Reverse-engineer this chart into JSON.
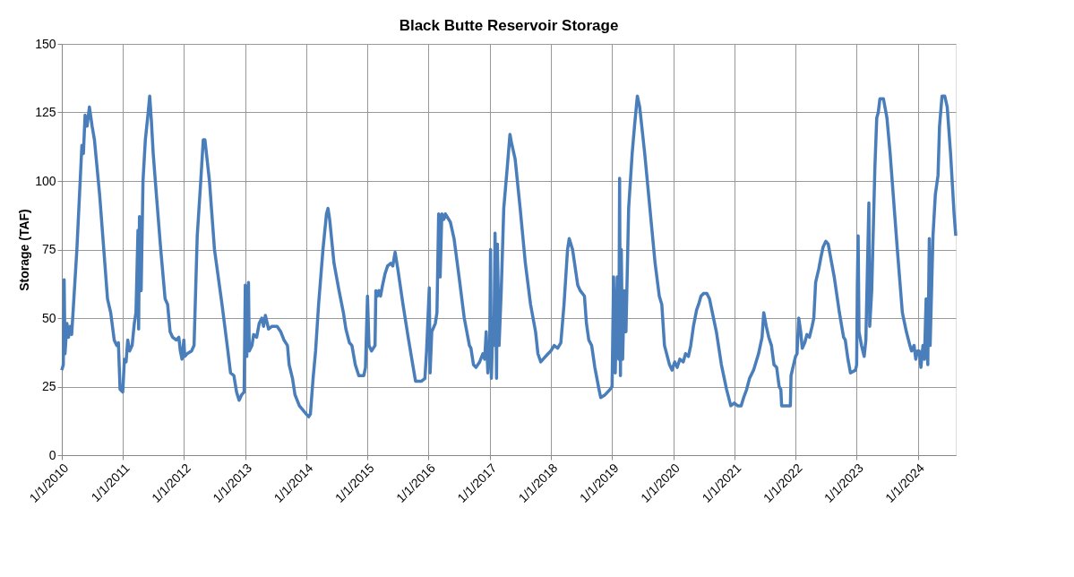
{
  "chart_data": {
    "type": "line",
    "title": "Black Butte Reservoir Storage",
    "ylabel": "Storage (TAF)",
    "xlim": [
      "2010-01-01",
      "2024-08-15"
    ],
    "xticks": [
      {
        "value": "2010-01-01",
        "label": "1/1/2010"
      },
      {
        "value": "2011-01-01",
        "label": "1/1/2011"
      },
      {
        "value": "2012-01-01",
        "label": "1/1/2012"
      },
      {
        "value": "2013-01-01",
        "label": "1/1/2013"
      },
      {
        "value": "2014-01-01",
        "label": "1/1/2014"
      },
      {
        "value": "2015-01-01",
        "label": "1/1/2015"
      },
      {
        "value": "2016-01-01",
        "label": "1/1/2016"
      },
      {
        "value": "2017-01-01",
        "label": "1/1/2017"
      },
      {
        "value": "2018-01-01",
        "label": "1/1/2018"
      },
      {
        "value": "2019-01-01",
        "label": "1/1/2019"
      },
      {
        "value": "2020-01-01",
        "label": "1/1/2020"
      },
      {
        "value": "2021-01-01",
        "label": "1/1/2021"
      },
      {
        "value": "2022-01-01",
        "label": "1/1/2022"
      },
      {
        "value": "2023-01-01",
        "label": "1/1/2023"
      },
      {
        "value": "2024-01-01",
        "label": "1/1/2024"
      }
    ],
    "ylim": [
      0,
      150
    ],
    "yticks": [
      0,
      25,
      50,
      75,
      100,
      125,
      150
    ],
    "grid": true,
    "legend": false,
    "marker": "none",
    "line_style": "solid",
    "series": [
      {
        "color": "#4a7ebb",
        "x": [
          "2010-01-01",
          "2010-01-10",
          "2010-01-15",
          "2010-01-20",
          "2010-02-01",
          "2010-02-10",
          "2010-02-20",
          "2010-03-01",
          "2010-03-15",
          "2010-04-01",
          "2010-05-01",
          "2010-05-10",
          "2010-05-20",
          "2010-06-01",
          "2010-06-15",
          "2010-07-01",
          "2010-07-15",
          "2010-08-15",
          "2010-09-15",
          "2010-10-01",
          "2010-10-20",
          "2010-11-10",
          "2010-11-25",
          "2010-12-05",
          "2010-12-15",
          "2010-12-31",
          "2011-01-10",
          "2011-01-20",
          "2011-01-30",
          "2011-02-10",
          "2011-02-25",
          "2011-03-10",
          "2011-03-20",
          "2011-04-01",
          "2011-04-05",
          "2011-04-10",
          "2011-04-20",
          "2011-05-01",
          "2011-05-15",
          "2011-06-01",
          "2011-06-10",
          "2011-06-20",
          "2011-07-01",
          "2011-07-20",
          "2011-08-15",
          "2011-09-10",
          "2011-09-25",
          "2011-10-10",
          "2011-10-25",
          "2011-11-15",
          "2011-12-01",
          "2011-12-10",
          "2011-12-20",
          "2011-12-31",
          "2012-01-05",
          "2012-01-20",
          "2012-02-15",
          "2012-03-01",
          "2012-03-20",
          "2012-04-10",
          "2012-04-25",
          "2012-05-05",
          "2012-06-01",
          "2012-07-01",
          "2012-08-15",
          "2012-09-15",
          "2012-10-05",
          "2012-10-25",
          "2012-11-10",
          "2012-11-25",
          "2012-12-10",
          "2012-12-25",
          "2013-01-01",
          "2013-01-10",
          "2013-01-20",
          "2013-01-25",
          "2013-02-10",
          "2013-02-20",
          "2013-03-10",
          "2013-03-25",
          "2013-04-10",
          "2013-04-20",
          "2013-05-01",
          "2013-05-20",
          "2013-06-10",
          "2013-07-10",
          "2013-08-01",
          "2013-08-20",
          "2013-09-10",
          "2013-09-20",
          "2013-10-10",
          "2013-10-25",
          "2013-11-20",
          "2013-12-31",
          "2014-01-15",
          "2014-01-25",
          "2014-02-10",
          "2014-02-25",
          "2014-03-15",
          "2014-04-10",
          "2014-05-01",
          "2014-05-10",
          "2014-05-20",
          "2014-06-15",
          "2014-07-15",
          "2014-08-10",
          "2014-08-25",
          "2014-09-15",
          "2014-09-30",
          "2014-10-20",
          "2014-11-10",
          "2014-12-10",
          "2014-12-20",
          "2015-01-01",
          "2015-01-10",
          "2015-01-25",
          "2015-02-15",
          "2015-02-20",
          "2015-03-01",
          "2015-03-10",
          "2015-03-20",
          "2015-04-01",
          "2015-04-15",
          "2015-05-01",
          "2015-05-20",
          "2015-06-01",
          "2015-06-15",
          "2015-07-01",
          "2015-08-01",
          "2015-09-01",
          "2015-10-01",
          "2015-10-15",
          "2015-11-20",
          "2015-12-10",
          "2015-12-20",
          "2016-01-05",
          "2016-01-10",
          "2016-01-20",
          "2016-02-10",
          "2016-02-20",
          "2016-03-01",
          "2016-03-10",
          "2016-03-20",
          "2016-04-01",
          "2016-04-10",
          "2016-04-20",
          "2016-05-10",
          "2016-06-01",
          "2016-07-01",
          "2016-08-01",
          "2016-09-01",
          "2016-09-10",
          "2016-09-25",
          "2016-10-10",
          "2016-11-01",
          "2016-11-20",
          "2016-12-01",
          "2016-12-10",
          "2016-12-20",
          "2016-12-31",
          "2017-01-05",
          "2017-01-10",
          "2017-01-20",
          "2017-01-25",
          "2017-02-01",
          "2017-02-10",
          "2017-02-15",
          "2017-02-25",
          "2017-03-10",
          "2017-03-25",
          "2017-04-15",
          "2017-05-01",
          "2017-05-10",
          "2017-06-01",
          "2017-07-01",
          "2017-08-01",
          "2017-09-01",
          "2017-10-01",
          "2017-10-15",
          "2017-11-01",
          "2017-11-15",
          "2017-12-15",
          "2017-12-31",
          "2018-01-20",
          "2018-02-10",
          "2018-03-01",
          "2018-03-20",
          "2018-04-10",
          "2018-04-20",
          "2018-05-10",
          "2018-06-10",
          "2018-06-25",
          "2018-07-20",
          "2018-08-01",
          "2018-08-15",
          "2018-09-01",
          "2018-09-20",
          "2018-10-15",
          "2018-10-25",
          "2018-11-20",
          "2018-12-20",
          "2019-01-01",
          "2019-01-10",
          "2019-01-20",
          "2019-02-01",
          "2019-02-10",
          "2019-02-15",
          "2019-02-20",
          "2019-02-25",
          "2019-03-05",
          "2019-03-15",
          "2019-03-25",
          "2019-04-10",
          "2019-05-01",
          "2019-05-15",
          "2019-06-01",
          "2019-06-15",
          "2019-07-15",
          "2019-08-15",
          "2019-09-15",
          "2019-10-10",
          "2019-10-25",
          "2019-11-10",
          "2019-12-10",
          "2019-12-25",
          "2020-01-10",
          "2020-01-25",
          "2020-02-10",
          "2020-03-01",
          "2020-03-15",
          "2020-04-01",
          "2020-04-15",
          "2020-05-01",
          "2020-05-20",
          "2020-06-01",
          "2020-06-15",
          "2020-07-01",
          "2020-07-20",
          "2020-08-05",
          "2020-09-15",
          "2020-10-15",
          "2020-11-15",
          "2020-12-10",
          "2020-12-31",
          "2021-01-20",
          "2021-02-10",
          "2021-02-25",
          "2021-03-15",
          "2021-04-01",
          "2021-04-25",
          "2021-05-10",
          "2021-05-25",
          "2021-06-15",
          "2021-06-25",
          "2021-07-10",
          "2021-07-25",
          "2021-08-10",
          "2021-08-25",
          "2021-09-10",
          "2021-09-25",
          "2021-10-05",
          "2021-10-10",
          "2021-11-10",
          "2021-12-01",
          "2021-12-05",
          "2021-12-20",
          "2022-01-01",
          "2022-01-10",
          "2022-01-20",
          "2022-02-01",
          "2022-02-10",
          "2022-02-25",
          "2022-03-10",
          "2022-03-25",
          "2022-04-10",
          "2022-04-20",
          "2022-05-01",
          "2022-05-20",
          "2022-06-01",
          "2022-06-15",
          "2022-07-01",
          "2022-07-15",
          "2022-08-20",
          "2022-09-20",
          "2022-10-15",
          "2022-10-25",
          "2022-11-10",
          "2022-11-25",
          "2022-12-25",
          "2023-01-01",
          "2023-01-05",
          "2023-01-10",
          "2023-01-15",
          "2023-01-30",
          "2023-02-15",
          "2023-02-25",
          "2023-03-15",
          "2023-03-20",
          "2023-04-01",
          "2023-04-20",
          "2023-05-01",
          "2023-05-10",
          "2023-05-20",
          "2023-06-10",
          "2023-07-01",
          "2023-07-20",
          "2023-09-01",
          "2023-10-01",
          "2023-10-25",
          "2023-11-15",
          "2023-11-25",
          "2023-12-10",
          "2023-12-20",
          "2023-12-31",
          "2024-01-10",
          "2024-01-20",
          "2024-02-01",
          "2024-02-10",
          "2024-02-20",
          "2024-03-01",
          "2024-03-10",
          "2024-03-15",
          "2024-04-01",
          "2024-04-15",
          "2024-05-01",
          "2024-05-10",
          "2024-05-25",
          "2024-06-10",
          "2024-06-25",
          "2024-07-15",
          "2024-08-05",
          "2024-08-15"
        ],
        "values": [
          31,
          33,
          64,
          37,
          48,
          43,
          47,
          44,
          58,
          75,
          113,
          110,
          124,
          120,
          127,
          120,
          115,
          95,
          70,
          57,
          52,
          42,
          40,
          41,
          24,
          23,
          35,
          34,
          42,
          38,
          40,
          48,
          52,
          82,
          46,
          87,
          60,
          100,
          115,
          125,
          131,
          122,
          110,
          95,
          75,
          57,
          55,
          45,
          43,
          42,
          43,
          38,
          35,
          42,
          36,
          37,
          38,
          40,
          80,
          100,
          115,
          115,
          100,
          75,
          55,
          40,
          30,
          29,
          23,
          20,
          22,
          23,
          62,
          36,
          63,
          38,
          40,
          44,
          43,
          48,
          50,
          47,
          51,
          46,
          47,
          47,
          45,
          42,
          40,
          33,
          28,
          22,
          18,
          15,
          14,
          15,
          28,
          38,
          55,
          75,
          88,
          90,
          86,
          70,
          60,
          52,
          46,
          41,
          40,
          33,
          29,
          29,
          32,
          58,
          40,
          38,
          40,
          60,
          58,
          60,
          58,
          62,
          66,
          69,
          70,
          69,
          74,
          68,
          55,
          43,
          32,
          27,
          27,
          28,
          38,
          61,
          30,
          45,
          48,
          52,
          88,
          65,
          88,
          86,
          88,
          87,
          85,
          79,
          65,
          50,
          40,
          39,
          33,
          32,
          34,
          37,
          35,
          45,
          30,
          40,
          75,
          28,
          50,
          40,
          81,
          28,
          77,
          40,
          60,
          90,
          105,
          117,
          114,
          108,
          90,
          70,
          55,
          45,
          37,
          34,
          35,
          37,
          38,
          40,
          39,
          41,
          55,
          75,
          79,
          75,
          62,
          60,
          58,
          48,
          42,
          40,
          32,
          24,
          21,
          22,
          24,
          25,
          65,
          30,
          65,
          35,
          101,
          29,
          75,
          35,
          60,
          45,
          90,
          110,
          120,
          131,
          127,
          110,
          90,
          70,
          58,
          55,
          40,
          33,
          31,
          34,
          32,
          35,
          34,
          37,
          36,
          40,
          47,
          53,
          55,
          58,
          59,
          59,
          57,
          45,
          33,
          24,
          18,
          19,
          18,
          18,
          21,
          24,
          28,
          31,
          34,
          37,
          43,
          52,
          47,
          43,
          40,
          33,
          32,
          25,
          24,
          18,
          18,
          18,
          29,
          33,
          36,
          37,
          50,
          45,
          39,
          41,
          44,
          43,
          47,
          50,
          63,
          68,
          72,
          76,
          78,
          77,
          65,
          52,
          43,
          42,
          35,
          30,
          31,
          33,
          62,
          80,
          45,
          40,
          36,
          42,
          92,
          47,
          60,
          105,
          123,
          125,
          130,
          130,
          123,
          110,
          75,
          52,
          45,
          40,
          38,
          40,
          35,
          38,
          38,
          32,
          40,
          35,
          57,
          33,
          79,
          40,
          80,
          95,
          102,
          120,
          131,
          131,
          127,
          110,
          88,
          80
        ]
      }
    ]
  }
}
